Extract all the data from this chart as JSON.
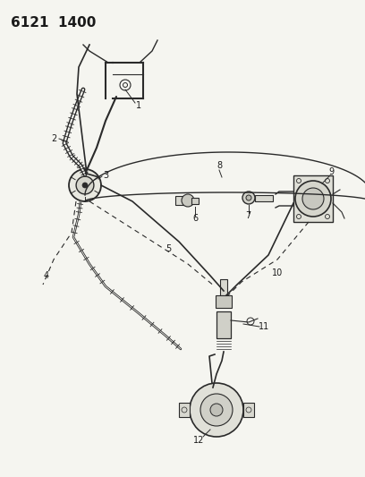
{
  "title": "6121  1400",
  "background_color": "#f5f5f0",
  "line_color": "#2a2a2a",
  "text_color": "#1a1a1a",
  "fig_width": 4.08,
  "fig_height": 5.33,
  "dpi": 100
}
